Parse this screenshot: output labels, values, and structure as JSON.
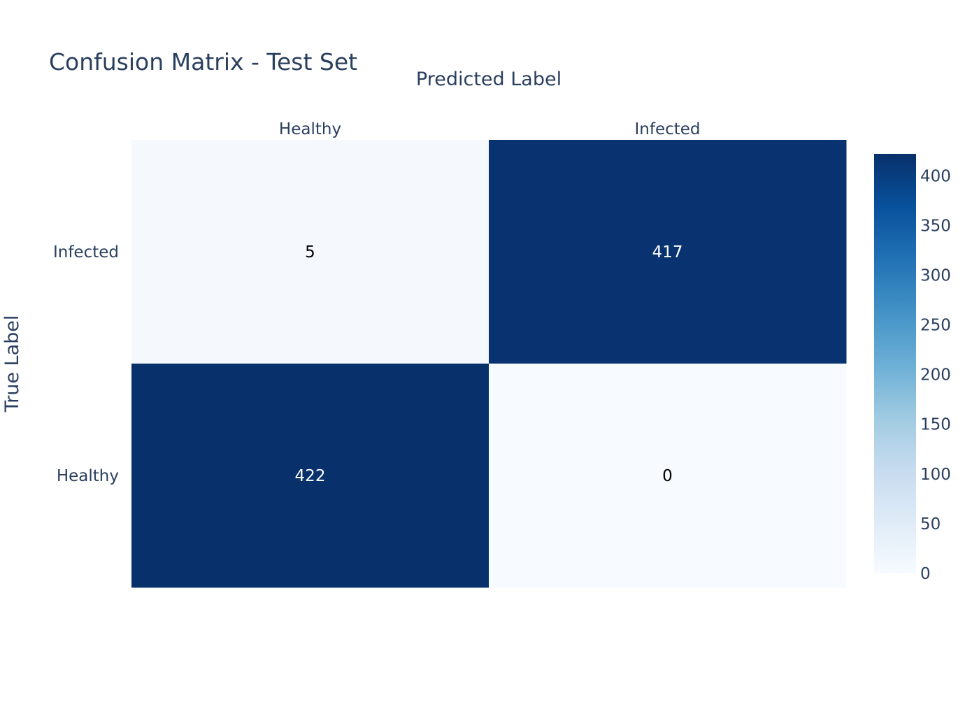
{
  "chart_data": {
    "type": "heatmap",
    "title": "Confusion Matrix - Test Set",
    "xlabel": "Predicted Label",
    "ylabel": "True Label",
    "x_categories": [
      "Healthy",
      "Infected"
    ],
    "y_categories": [
      "Infected",
      "Healthy"
    ],
    "values": [
      [
        5,
        417
      ],
      [
        422,
        0
      ]
    ],
    "colorscale": "Blues",
    "colorbar": {
      "min": 0,
      "max": 422,
      "ticks": [
        0,
        50,
        100,
        150,
        200,
        250,
        300,
        350,
        400
      ]
    },
    "colors": {
      "text": "#2a3f5f",
      "cell_dark_text": "#ffffff",
      "cell_light_text": "#000000"
    }
  }
}
